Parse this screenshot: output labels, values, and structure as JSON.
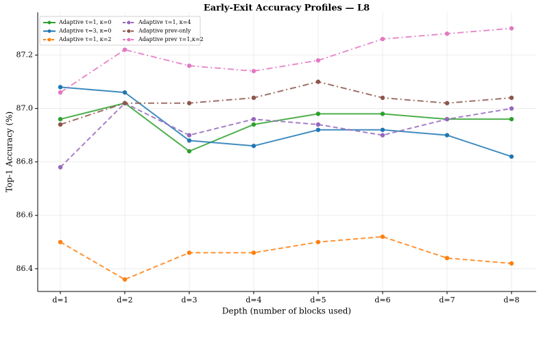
{
  "chart_data": {
    "type": "line",
    "title": "Early-Exit Accuracy Profiles — L8",
    "x_label": "Depth (number of blocks used)",
    "y_label": "Top-1 Accuracy (%)",
    "categories": [
      "d=1",
      "d=2",
      "d=3",
      "d=4",
      "d=5",
      "d=6",
      "d=7",
      "d=8"
    ],
    "series": [
      {
        "name": "Adaptive τ=1, κ=0",
        "color": "#2ca02c",
        "linestyle": "solid",
        "values": [
          86.96,
          87.02,
          86.84,
          86.94,
          86.98,
          86.98,
          86.96,
          86.96
        ]
      },
      {
        "name": "Adaptive τ=3, κ=0",
        "color": "#1f77b4",
        "linestyle": "solid",
        "values": [
          87.08,
          87.06,
          86.88,
          86.86,
          86.92,
          86.92,
          86.9,
          86.82
        ]
      },
      {
        "name": "Adaptive τ=1, κ=2",
        "color": "#ff7f0e",
        "linestyle": "dashed",
        "values": [
          86.5,
          86.36,
          86.46,
          86.46,
          86.5,
          86.52,
          86.44,
          86.42
        ]
      },
      {
        "name": "Adaptive τ=1, κ=4",
        "color": "#9467bd",
        "linestyle": "dashed",
        "values": [
          86.78,
          87.02,
          86.9,
          86.96,
          86.94,
          86.9,
          86.96,
          87.0
        ]
      },
      {
        "name": "Adaptive prev-only",
        "color": "#8c564b",
        "linestyle": "dashdot",
        "values": [
          86.94,
          87.02,
          87.02,
          87.04,
          87.1,
          87.04,
          87.02,
          87.04
        ]
      },
      {
        "name": "Adaptive prev τ=1,κ=2",
        "color": "#e377c2",
        "linestyle": "dashdot",
        "values": [
          87.06,
          87.22,
          87.16,
          87.14,
          87.18,
          87.26,
          87.28,
          87.3
        ]
      }
    ],
    "ylim": [
      86.315,
      87.36
    ],
    "yticks": [
      {
        "value": 86.4,
        "label": "86.4"
      },
      {
        "value": 86.6,
        "label": "86.6"
      },
      {
        "value": 86.8,
        "label": "86.8"
      },
      {
        "value": 87.0,
        "label": "87.0"
      },
      {
        "value": 87.2,
        "label": "87.2"
      }
    ],
    "grid": true,
    "legend": "upper-left"
  }
}
